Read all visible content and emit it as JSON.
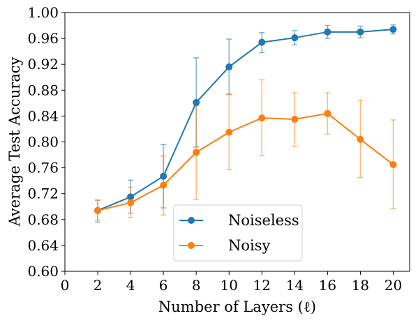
{
  "chart_data": {
    "type": "line",
    "xlabel": "Number of Layers (ℓ)",
    "ylabel": "Average Test Accuracy",
    "xlim": [
      0,
      21
    ],
    "ylim": [
      0.6,
      1.0
    ],
    "xticks": [
      0,
      2,
      4,
      6,
      8,
      10,
      12,
      14,
      16,
      18,
      20
    ],
    "yticks": [
      0.6,
      0.64,
      0.68,
      0.72,
      0.76,
      0.8,
      0.84,
      0.88,
      0.92,
      0.96,
      1.0
    ],
    "xtick_labels": [
      "0",
      "2",
      "4",
      "6",
      "8",
      "10",
      "12",
      "14",
      "16",
      "18",
      "20"
    ],
    "ytick_labels": [
      "0.60",
      "0.64",
      "0.68",
      "0.72",
      "0.76",
      "0.80",
      "0.84",
      "0.88",
      "0.92",
      "0.96",
      "1.00"
    ],
    "legend_position": "bottom-center",
    "grid": false,
    "x": [
      2,
      4,
      6,
      8,
      10,
      12,
      14,
      16,
      18,
      20
    ],
    "series": [
      {
        "name": "Noiseless",
        "color": "#1f77b4",
        "values": [
          0.694,
          0.715,
          0.747,
          0.861,
          0.916,
          0.954,
          0.961,
          0.97,
          0.97,
          0.974
        ],
        "err_low": [
          0.676,
          0.69,
          0.698,
          0.792,
          0.874,
          0.938,
          0.95,
          0.96,
          0.961,
          0.967
        ],
        "err_high": [
          0.71,
          0.741,
          0.796,
          0.93,
          0.959,
          0.969,
          0.972,
          0.98,
          0.979,
          0.981
        ]
      },
      {
        "name": "Noisy",
        "color": "#ff7f0e",
        "values": [
          0.694,
          0.706,
          0.733,
          0.784,
          0.815,
          0.837,
          0.835,
          0.844,
          0.804,
          0.765
        ],
        "err_low": [
          0.679,
          0.683,
          0.687,
          0.711,
          0.757,
          0.779,
          0.793,
          0.812,
          0.745,
          0.697
        ],
        "err_high": [
          0.71,
          0.73,
          0.778,
          0.856,
          0.873,
          0.896,
          0.876,
          0.876,
          0.864,
          0.834
        ]
      }
    ]
  }
}
